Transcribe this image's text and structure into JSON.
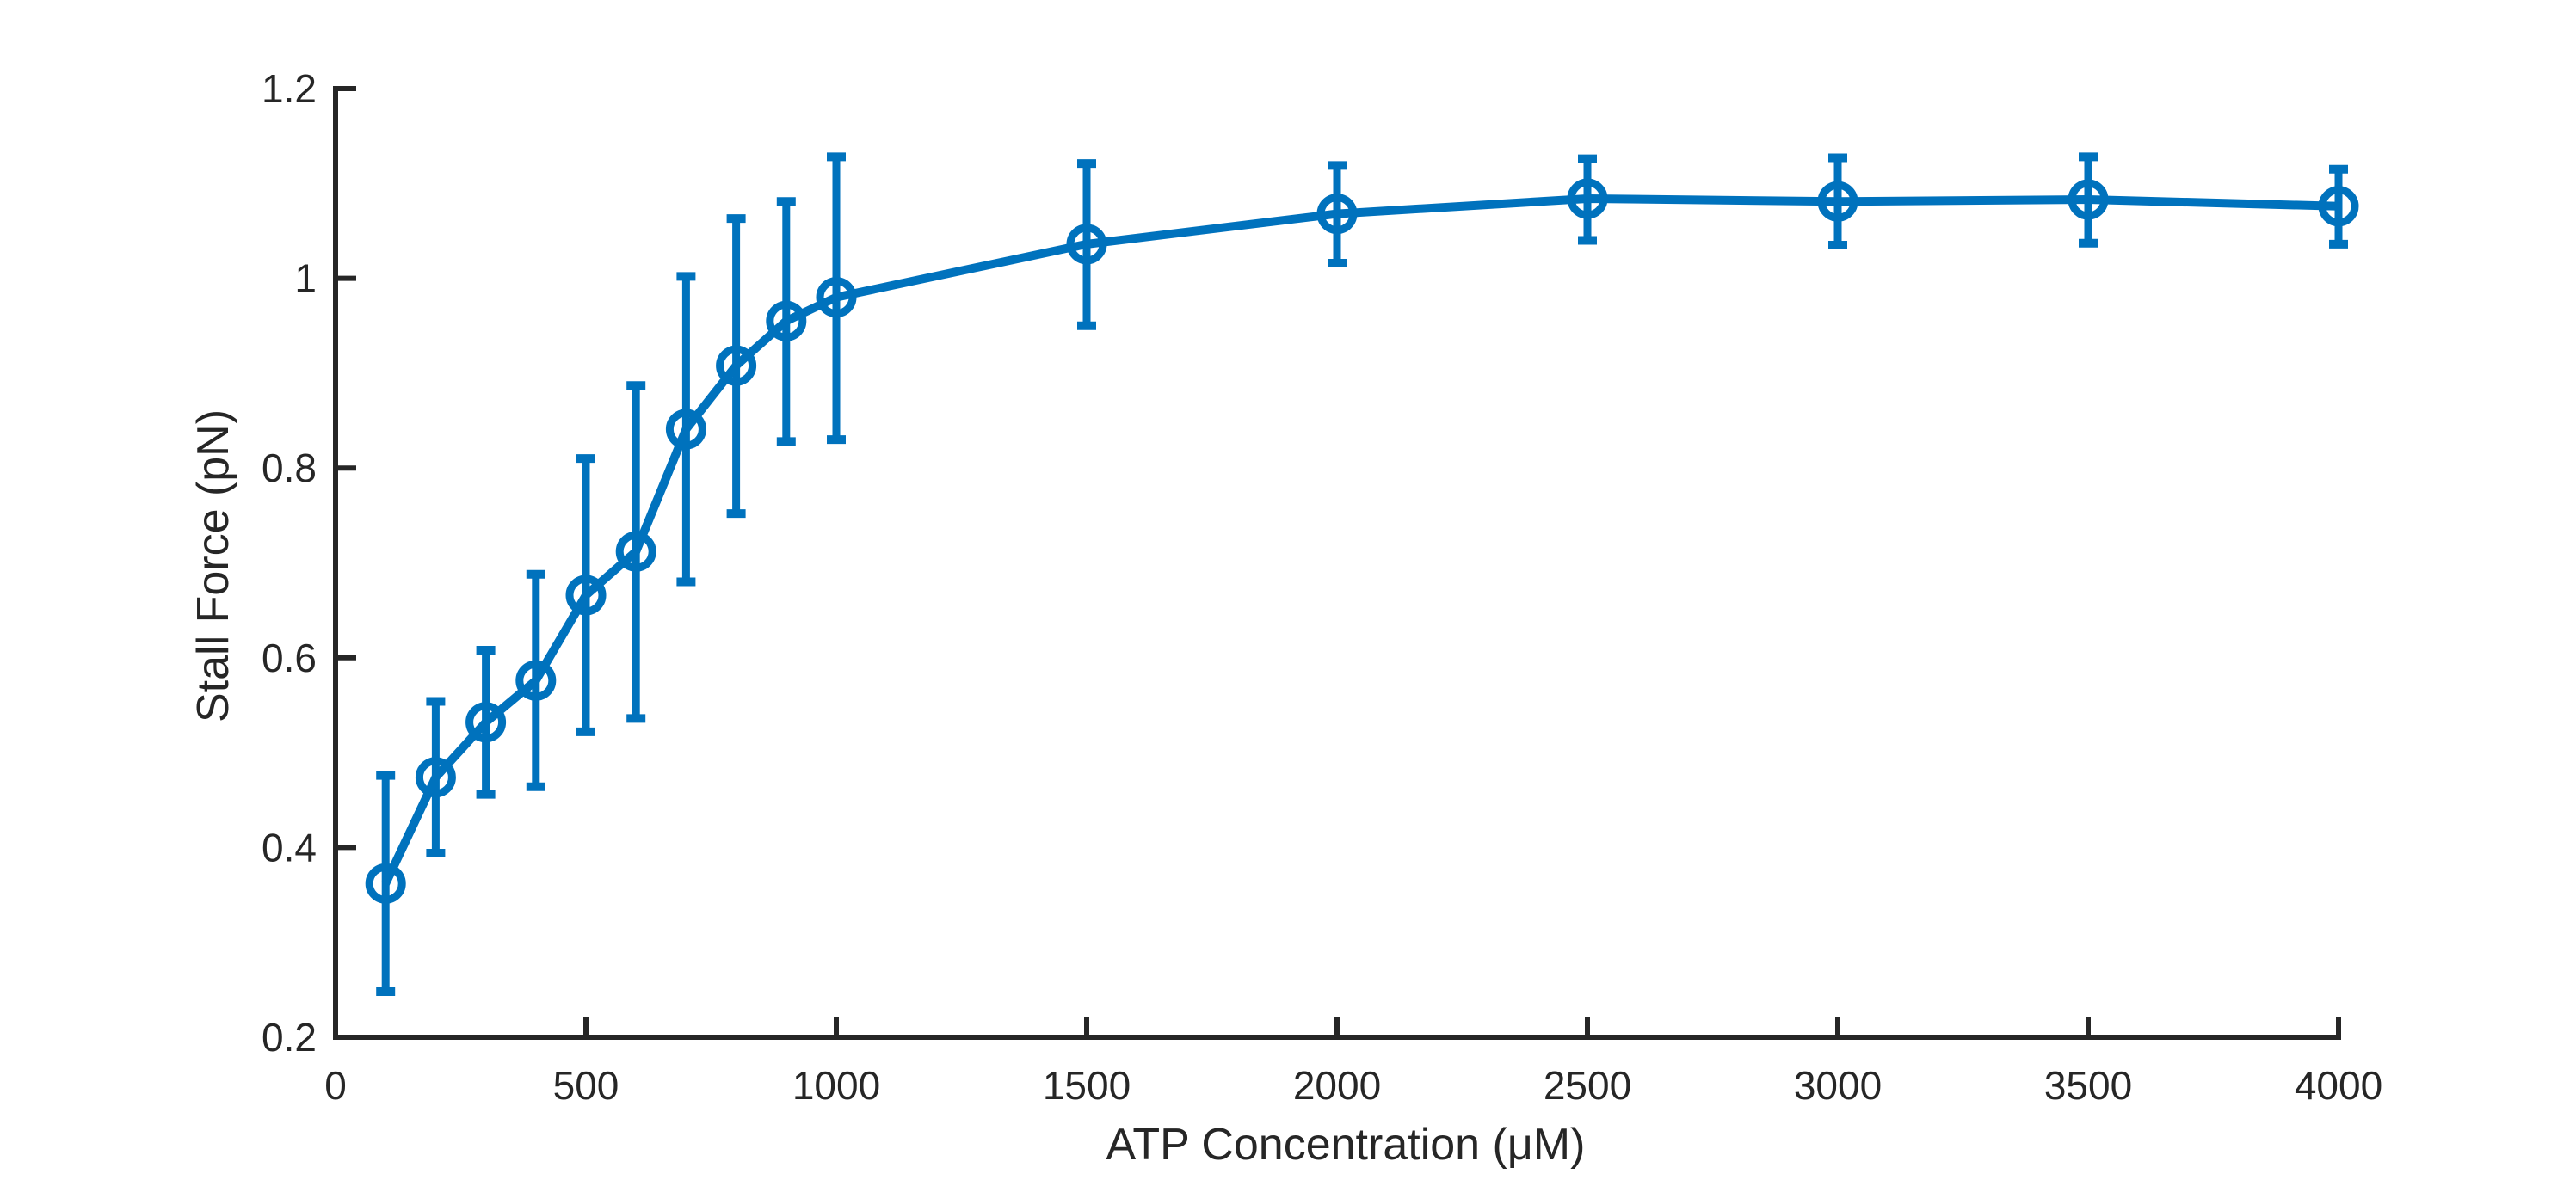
{
  "chart_data": {
    "type": "line",
    "title": "",
    "xlabel": "ATP Concentration (μM)",
    "ylabel": "Stall Force (pN)",
    "xlim": [
      0,
      4000
    ],
    "ylim": [
      0.2,
      1.2
    ],
    "x_ticks": [
      0,
      500,
      1000,
      1500,
      2000,
      2500,
      3000,
      3500,
      4000
    ],
    "y_ticks": [
      0.2,
      0.4,
      0.6,
      0.8,
      1.0,
      1.2
    ],
    "x_tick_labels": [
      "0",
      "500",
      "1000",
      "1500",
      "2000",
      "2500",
      "3000",
      "3500",
      "4000"
    ],
    "y_tick_labels": [
      "0.2",
      "0.4",
      "0.6",
      "0.8",
      "1",
      "1.2"
    ],
    "grid": false,
    "legend": "none",
    "marker": "circle",
    "color": "#0072BD",
    "axis_color": "#262626",
    "series": [
      {
        "x": [
          100,
          200,
          300,
          400,
          500,
          600,
          700,
          800,
          900,
          1000,
          1500,
          2000,
          2500,
          3000,
          3500,
          4000
        ],
        "y": [
          0.362,
          0.474,
          0.532,
          0.576,
          0.666,
          0.712,
          0.841,
          0.908,
          0.955,
          0.98,
          1.036,
          1.068,
          1.084,
          1.081,
          1.083,
          1.076
        ],
        "err_low": [
          0.248,
          0.394,
          0.456,
          0.464,
          0.522,
          0.536,
          0.68,
          0.752,
          0.828,
          0.83,
          0.95,
          1.016,
          1.04,
          1.035,
          1.037,
          1.036
        ],
        "err_high": [
          0.476,
          0.554,
          0.608,
          0.688,
          0.81,
          0.887,
          1.002,
          1.063,
          1.081,
          1.128,
          1.121,
          1.119,
          1.126,
          1.127,
          1.128,
          1.115
        ]
      }
    ]
  }
}
